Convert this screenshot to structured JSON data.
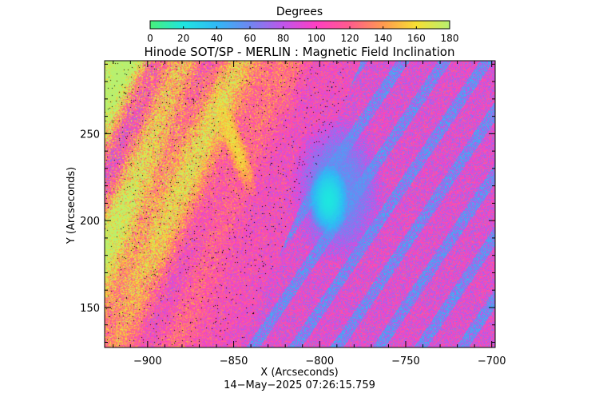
{
  "chart_data": {
    "type": "heatmap",
    "title": "Hinode SOT/SP - MERLIN : Magnetic Field Inclination",
    "xlabel": "X (Arcseconds)",
    "ylabel": "Y (Arcseconds)",
    "xlim": [
      -925,
      -698
    ],
    "ylim": [
      127,
      292
    ],
    "x_ticks": [
      -900,
      -850,
      -800,
      -750,
      -700
    ],
    "x_tick_labels": [
      "−900",
      "−850",
      "−800",
      "−750",
      "−700"
    ],
    "y_ticks": [
      150,
      200,
      250
    ],
    "y_tick_labels": [
      "150",
      "200",
      "250"
    ],
    "colorbar": {
      "label": "Degrees",
      "range": [
        0,
        180
      ],
      "ticks": [
        0,
        20,
        40,
        60,
        80,
        100,
        120,
        140,
        160,
        180
      ],
      "tick_labels": [
        "0",
        "20",
        "40",
        "60",
        "80",
        "100",
        "120",
        "140",
        "160",
        "180"
      ],
      "color_stops": [
        {
          "value": 0,
          "color": "#48f07a"
        },
        {
          "value": 20,
          "color": "#1ee6e0"
        },
        {
          "value": 40,
          "color": "#30b8f6"
        },
        {
          "value": 60,
          "color": "#6f86f0"
        },
        {
          "value": 80,
          "color": "#c055ea"
        },
        {
          "value": 100,
          "color": "#ff3fc2"
        },
        {
          "value": 120,
          "color": "#ff5c8c"
        },
        {
          "value": 140,
          "color": "#ff9a50"
        },
        {
          "value": 160,
          "color": "#f7e033"
        },
        {
          "value": 180,
          "color": "#b7f070"
        }
      ]
    },
    "background_value": 100,
    "features": [
      {
        "kind": "sunspot-umbra",
        "center": [
          -795,
          212
        ],
        "value": 20
      },
      {
        "kind": "sunspot-penumbra",
        "center": [
          -790,
          218
        ],
        "value": 55
      },
      {
        "kind": "limb-bands",
        "value_range": [
          120,
          165
        ]
      },
      {
        "kind": "hot-stripe",
        "center": [
          -850,
          245
        ],
        "value": 160
      }
    ],
    "grid": false,
    "legend": "none"
  },
  "timestamp": "14−May−2025 07:26:15.759"
}
